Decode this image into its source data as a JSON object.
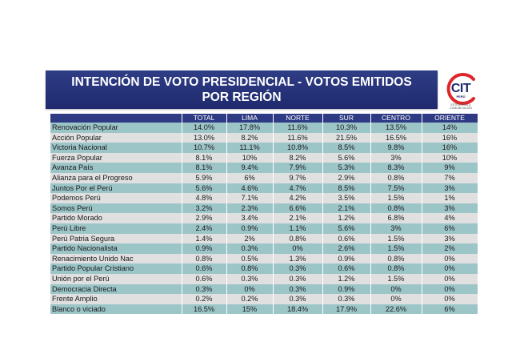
{
  "title_line1": "INTENCIÓN DE VOTO PRESIDENCIAL - VOTOS EMITIDOS",
  "title_line2": "POR REGIÓN",
  "logo": {
    "name": "CIT",
    "sub": "PERÚ",
    "tag": "ESTRATEGIA & COMUNICACIÓN"
  },
  "colors": {
    "header": "#2e3a84",
    "band": "#1f2a6e",
    "row_teal": "#9cc5c8",
    "row_grey": "#e0e0e0",
    "logo_red": "#e0262b"
  },
  "columns": [
    "",
    "TOTAL",
    "LIMA",
    "NORTE",
    "SUR",
    "CENTRO",
    "ORIENTE"
  ],
  "rows": [
    [
      "Renovación Popular",
      "14.0%",
      "17.8%",
      "11.6%",
      "10.3%",
      "13.5%",
      "14%"
    ],
    [
      "Acción Popular",
      "13.0%",
      "8.2%",
      "11.6%",
      "21.5%",
      "16.5%",
      "16%"
    ],
    [
      "Victoria Nacional",
      "10.7%",
      "11.1%",
      "10.8%",
      "8.5%",
      "9.8%",
      "16%"
    ],
    [
      "Fuerza Popular",
      "8.1%",
      "10%",
      "8.2%",
      "5.6%",
      "3%",
      "10%"
    ],
    [
      "Avanza País",
      "8.1%",
      "9.4%",
      "7.9%",
      "5.3%",
      "8.3%",
      "9%"
    ],
    [
      "Alianza para el Progreso",
      "5.9%",
      "6%",
      "9.7%",
      "2.9%",
      "0.8%",
      "7%"
    ],
    [
      "Juntos Por el Perú",
      "5.6%",
      "4.6%",
      "4.7%",
      "8.5%",
      "7.5%",
      "3%"
    ],
    [
      "Podemos Perú",
      "4.8%",
      "7.1%",
      "4.2%",
      "3.5%",
      "1.5%",
      "1%"
    ],
    [
      "Somos Perú",
      "3.2%",
      "2.3%",
      "6.6%",
      "2.1%",
      "0.8%",
      "3%"
    ],
    [
      "Partido Morado",
      "2.9%",
      "3.4%",
      "2.1%",
      "1.2%",
      "6.8%",
      "4%"
    ],
    [
      "Perú Libre",
      "2.4%",
      "0.9%",
      "1.1%",
      "5.6%",
      "3%",
      "6%"
    ],
    [
      "Perú Patria Segura",
      "1.4%",
      "2%",
      "0.8%",
      "0.6%",
      "1.5%",
      "3%"
    ],
    [
      "Partido Nacionalista",
      "0.9%",
      "0.3%",
      "0%",
      "2.6%",
      "1.5%",
      "2%"
    ],
    [
      "Renacimiento Unido Nac",
      "0.8%",
      "0.5%",
      "1.3%",
      "0.9%",
      "0.8%",
      "0%"
    ],
    [
      "Partido Popular Cristiano",
      "0.6%",
      "0.8%",
      "0.3%",
      "0.6%",
      "0.8%",
      "0%"
    ],
    [
      "Unión por el Perú",
      "0.6%",
      "0.3%",
      "0.3%",
      "1.2%",
      "1.5%",
      "0%"
    ],
    [
      "Democracia Directa",
      "0.3%",
      "0%",
      "0.3%",
      "0.9%",
      "0%",
      "0%"
    ],
    [
      "Frente Amplio",
      "0.2%",
      "0.2%",
      "0.3%",
      "0.3%",
      "0%",
      "0%"
    ],
    [
      "Blanco o viciado",
      "16.5%",
      "15%",
      "18.4%",
      "17.9%",
      "22.6%",
      "6%"
    ]
  ]
}
